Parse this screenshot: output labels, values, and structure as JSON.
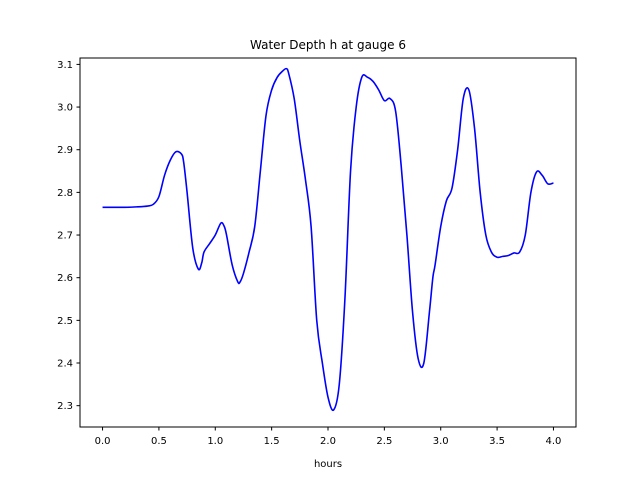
{
  "chart_data": {
    "type": "line",
    "title": "Water Depth h at gauge 6",
    "xlabel": "hours",
    "ylabel": "",
    "xlim": [
      -0.2,
      4.2
    ],
    "ylim": [
      2.25,
      3.115
    ],
    "xticks": [
      "0.0",
      "0.5",
      "1.0",
      "1.5",
      "2.0",
      "2.5",
      "3.0",
      "3.5",
      "4.0"
    ],
    "yticks": [
      "2.3",
      "2.4",
      "2.5",
      "2.6",
      "2.7",
      "2.8",
      "2.9",
      "3.0",
      "3.1"
    ],
    "grid": false,
    "series": [
      {
        "color": "#0000ff",
        "x": [
          0.0,
          0.1,
          0.2,
          0.3,
          0.4,
          0.45,
          0.5,
          0.55,
          0.6,
          0.65,
          0.7,
          0.72,
          0.75,
          0.8,
          0.85,
          0.88,
          0.9,
          0.95,
          1.0,
          1.05,
          1.08,
          1.1,
          1.15,
          1.2,
          1.22,
          1.25,
          1.3,
          1.35,
          1.4,
          1.45,
          1.5,
          1.55,
          1.6,
          1.63,
          1.65,
          1.7,
          1.75,
          1.8,
          1.85,
          1.9,
          1.95,
          2.0,
          2.05,
          2.1,
          2.15,
          2.2,
          2.25,
          2.3,
          2.35,
          2.4,
          2.45,
          2.5,
          2.55,
          2.6,
          2.65,
          2.7,
          2.75,
          2.8,
          2.85,
          2.9,
          2.93,
          2.95,
          3.0,
          3.05,
          3.1,
          3.15,
          3.2,
          3.25,
          3.3,
          3.35,
          3.4,
          3.45,
          3.5,
          3.55,
          3.6,
          3.65,
          3.7,
          3.75,
          3.8,
          3.85,
          3.9,
          3.95,
          4.0
        ],
        "y": [
          2.765,
          2.765,
          2.765,
          2.766,
          2.768,
          2.772,
          2.79,
          2.84,
          2.875,
          2.895,
          2.89,
          2.87,
          2.8,
          2.67,
          2.62,
          2.635,
          2.66,
          2.68,
          2.7,
          2.728,
          2.72,
          2.7,
          2.63,
          2.59,
          2.59,
          2.61,
          2.66,
          2.72,
          2.85,
          2.98,
          3.04,
          3.07,
          3.085,
          3.09,
          3.08,
          3.02,
          2.92,
          2.83,
          2.72,
          2.5,
          2.4,
          2.32,
          2.29,
          2.35,
          2.55,
          2.85,
          3.0,
          3.07,
          3.07,
          3.06,
          3.04,
          3.015,
          3.02,
          2.99,
          2.86,
          2.7,
          2.52,
          2.41,
          2.4,
          2.52,
          2.6,
          2.63,
          2.72,
          2.78,
          2.81,
          2.9,
          3.02,
          3.04,
          2.95,
          2.8,
          2.7,
          2.66,
          2.648,
          2.65,
          2.652,
          2.658,
          2.66,
          2.7,
          2.8,
          2.848,
          2.84,
          2.82,
          2.822
        ]
      }
    ]
  }
}
